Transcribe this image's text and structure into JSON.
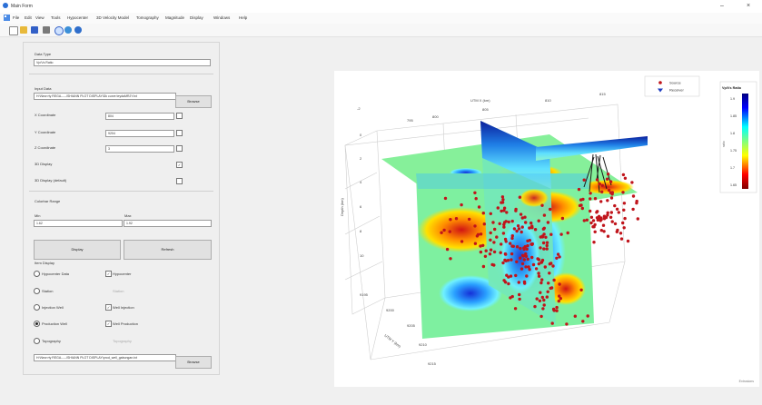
{
  "window": {
    "title": "Main Form",
    "controls": {
      "minimize": "–",
      "maximize": "□",
      "close": "×"
    }
  },
  "menu": [
    "File",
    "Edit",
    "View",
    "Tools",
    "Hypocenter",
    "3D Velocity Model",
    "Tomography",
    "Magnitude",
    "Display",
    "Windows",
    "Help"
  ],
  "toolbar": {
    "icons": [
      "new-file-icon",
      "open-folder-icon",
      "save-icon",
      "print-icon",
      "search-icon",
      "globe-icon",
      "help-icon"
    ]
  },
  "form": {
    "data_type": {
      "label": "Data Type",
      "value": "Vp/Vs Ratio"
    },
    "input_data": {
      "label": "Input Data",
      "value": "H:\\New rty REGA-----\\SHIANN PLOT DISPLAY\\Dk curve teydaMRJY.txt",
      "browse_label": "Browse"
    },
    "x_coordinate": {
      "label": "X Coordinate",
      "value": "804"
    },
    "y_coordinate": {
      "label": "Y Coordinate",
      "value": "9204"
    },
    "z_coordinate": {
      "label": "Z Coordinate",
      "value": "3"
    },
    "display_3d": {
      "label": "3D Display",
      "checked": true
    },
    "display_3d_default": {
      "label": "3D Display (default)",
      "checked": false
    },
    "colorbar_range": {
      "label": "Colorbar Range",
      "min_label": "Min",
      "min_value": "1.62",
      "max_label": "Max",
      "max_value": "1.92"
    },
    "display_button": "Display",
    "refresh_button": "Refresh",
    "item_display": {
      "label": "Item Display",
      "rows": [
        {
          "radio_label": "Hypocenter Data",
          "radio_on": false,
          "check_label": "Hypocenter",
          "check_on": true,
          "check_enabled": true
        },
        {
          "radio_label": "Station",
          "radio_on": false,
          "check_label": "Station",
          "check_on": false,
          "check_enabled": false
        },
        {
          "radio_label": "Injection Well",
          "radio_on": false,
          "check_label": "Well Injection",
          "check_on": true,
          "check_enabled": true
        },
        {
          "radio_label": "Production Well",
          "radio_on": true,
          "check_label": "Well Production",
          "check_on": true,
          "check_enabled": true
        },
        {
          "radio_label": "Topography",
          "radio_on": false,
          "check_label": "Topography",
          "check_on": false,
          "check_enabled": false
        }
      ]
    },
    "well_file": {
      "value": "H:\\New rty REGA-----\\SHIANN PLOT DISPLAY\\prod_well_gabungan.txt",
      "browse_label": "Browse"
    }
  },
  "plot": {
    "x_axis_label": "UTM X (km)",
    "y_axis_label": "UTM Y (km)",
    "z_axis_label": "Depth (km)",
    "top_ticks": [
      "795",
      "800",
      "805",
      "810",
      "815"
    ],
    "z_ticks": [
      "-2",
      "0",
      "2",
      "4",
      "6",
      "8",
      "10"
    ],
    "y_ticks": [
      "9195",
      "9200",
      "9205",
      "9210",
      "9215"
    ],
    "legend": [
      "Source",
      "Receiver"
    ],
    "colorbar_title": "Vp/Vs Ratio",
    "colorbar_unit": "ratio",
    "colorbar_ticks": [
      "1.9",
      "1.85",
      "1.8",
      "1.75",
      "1.7",
      "1.65"
    ],
    "watermark": "Extrusions"
  },
  "colors": {
    "source": "#c0141b",
    "receiver": "#1f3dbf"
  }
}
